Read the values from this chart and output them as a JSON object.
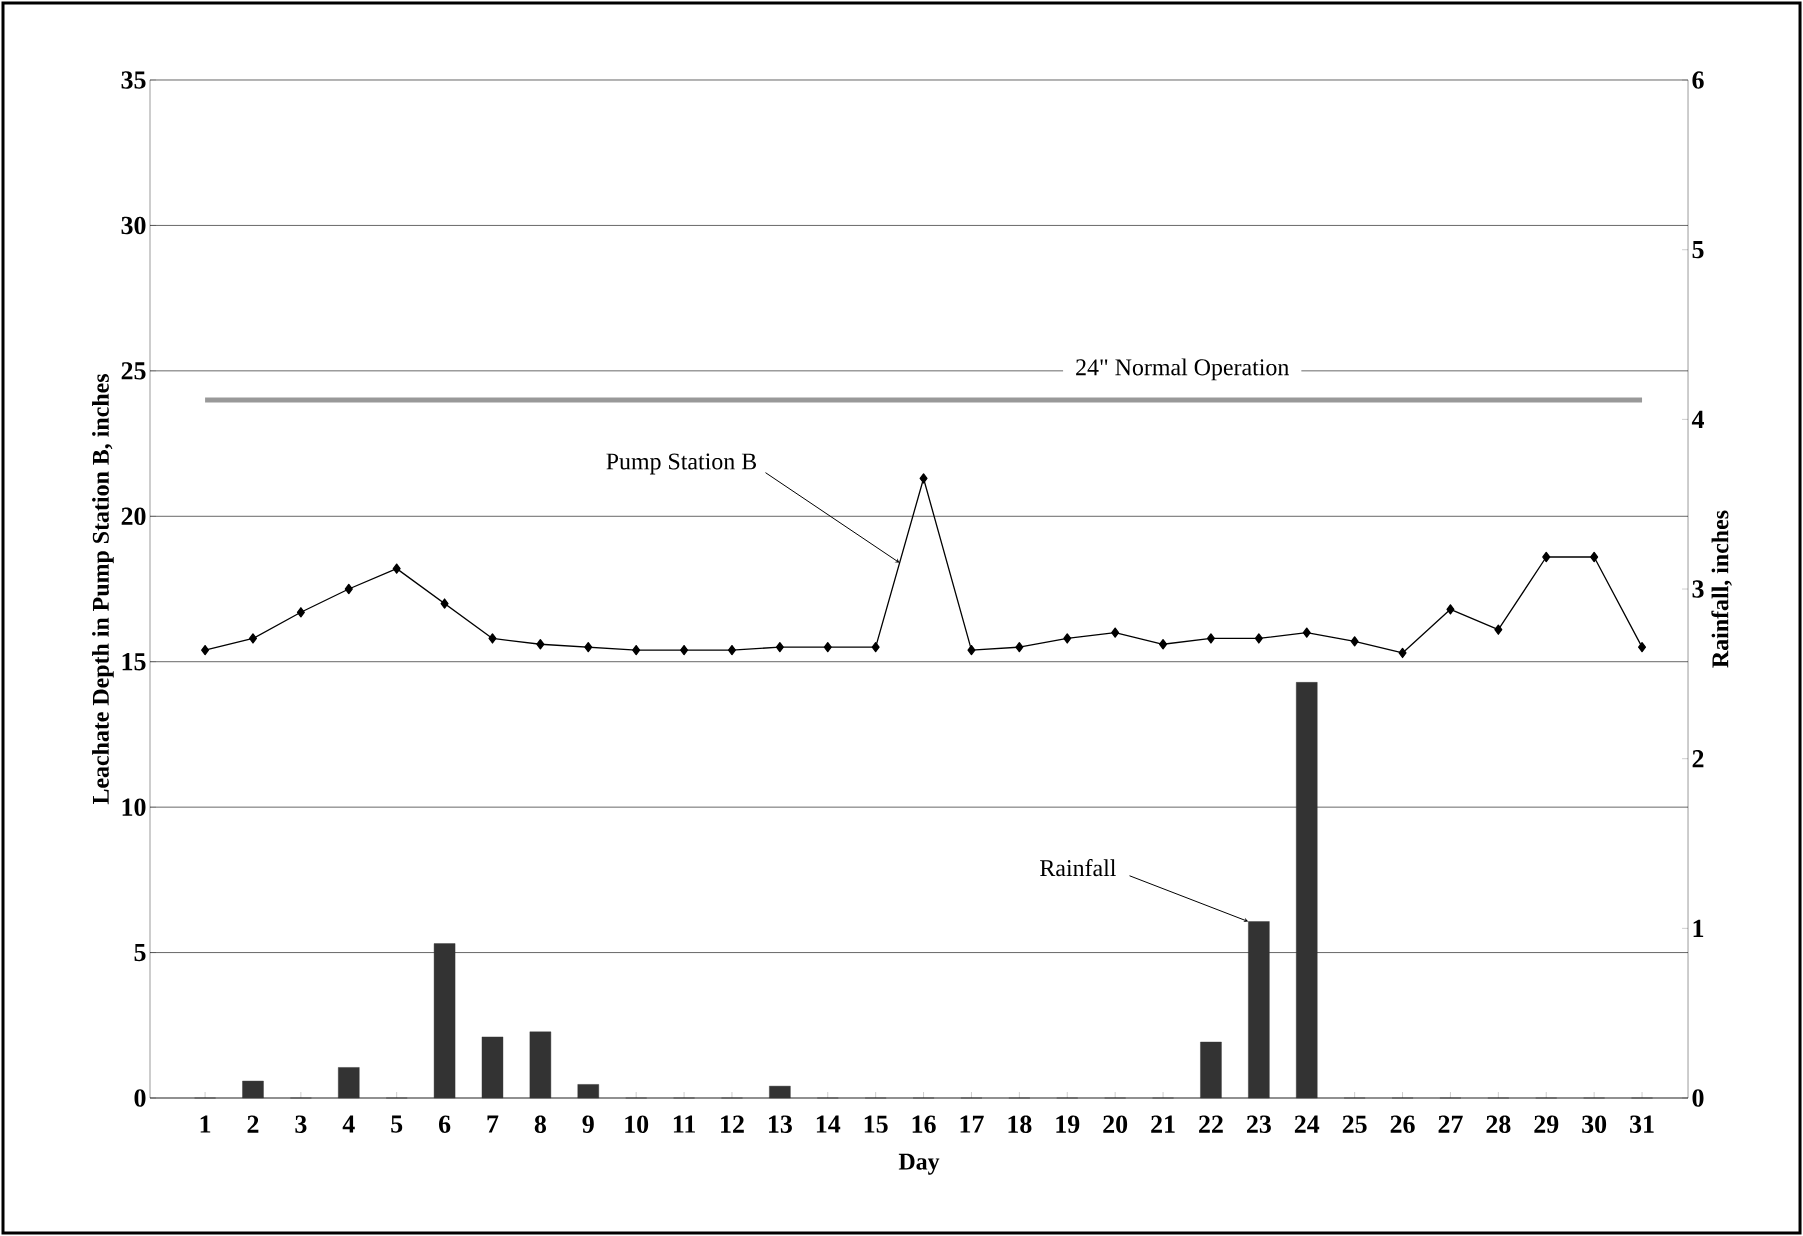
{
  "chart_data": {
    "type": "line",
    "xlabel": "Day",
    "ylabel": "Leachate Depth in Pump Station B, inches",
    "y2label": "Rainfall, inches",
    "categories": [
      "1",
      "2",
      "3",
      "4",
      "5",
      "6",
      "7",
      "8",
      "9",
      "10",
      "11",
      "12",
      "13",
      "14",
      "15",
      "16",
      "17",
      "18",
      "19",
      "20",
      "21",
      "22",
      "23",
      "24",
      "25",
      "26",
      "27",
      "28",
      "29",
      "30",
      "31"
    ],
    "series": [
      {
        "name": "Pump Station B",
        "color": "#000000",
        "values": [
          15.4,
          15.8,
          16.7,
          17.5,
          18.2,
          17.0,
          15.8,
          15.6,
          15.5,
          15.4,
          15.4,
          15.4,
          15.5,
          15.5,
          15.5,
          21.3,
          15.4,
          15.5,
          15.8,
          16.0,
          15.6,
          15.8,
          15.8,
          16.0,
          15.7,
          15.3,
          16.8,
          16.1,
          18.6,
          18.6,
          15.5
        ]
      },
      {
        "name": "Rainfall",
        "type": "bar",
        "axis": "y2",
        "color": "#333333",
        "values": [
          0,
          0.1,
          0,
          0.18,
          0,
          0.91,
          0.36,
          0.39,
          0.08,
          0,
          0,
          0,
          0.07,
          0,
          0,
          0,
          0,
          0,
          0,
          0,
          0,
          0.33,
          1.04,
          2.45,
          0,
          0,
          0,
          0,
          0,
          0,
          0
        ]
      }
    ],
    "ylim": [
      0,
      35
    ],
    "yticks": [
      0,
      5,
      10,
      15,
      20,
      25,
      30,
      35
    ],
    "y2lim": [
      0,
      6
    ],
    "y2ticks": [
      0,
      1,
      2,
      3,
      4,
      5,
      6
    ],
    "grid": "y",
    "marker": "diamond",
    "line_style": "solid",
    "ref_lines": [
      {
        "axis": "y",
        "value": 24,
        "label": "24\" Normal Operation",
        "color": "#999999"
      }
    ]
  }
}
